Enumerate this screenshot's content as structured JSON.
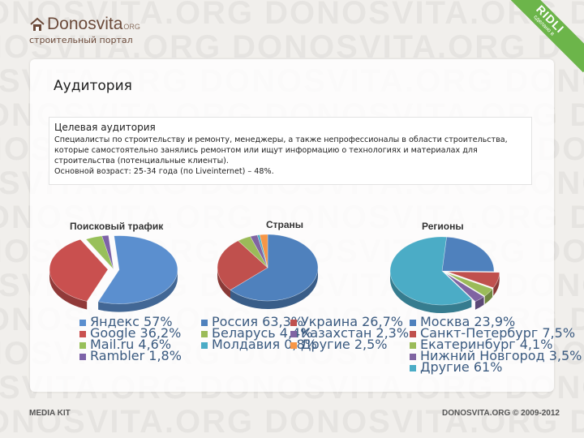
{
  "header": {
    "logo_name": "Donosvita",
    "logo_suffix": "ORG",
    "tagline": "строительный портал",
    "ribbon_brand": "RIDLI",
    "ribbon_sub": "сделано в"
  },
  "watermark_text": "DONOSVITA.ORG",
  "page_title": "Аудитория",
  "audience": {
    "heading": "Целевая аудитория",
    "text": "Специалисты по строительству и ремонту, менеджеры, а также непрофессионалы в области строительства, которые самостоятельно занялись ремонтом или ищут информацию о технологиях и материалах для строительства (потенциальные клиенты).",
    "age": "Основной возраст: 25-34 года (по Liveinternet) – 48%."
  },
  "chart_data": [
    {
      "type": "pie",
      "title": "Поисковый трафик",
      "labels": [
        "Яндекс 57%",
        "Google 36,2%",
        "Mail.ru 4,6%",
        "Rambler 1,8%"
      ],
      "values": [
        57,
        36.2,
        4.6,
        1.8
      ],
      "colors": [
        "#5b8fcf",
        "#c9504f",
        "#98c05a",
        "#7d62a8"
      ],
      "legend": "bottom"
    },
    {
      "type": "pie",
      "title": "Страны",
      "labels": [
        "Россия 63,3%",
        "Украина 26,7%",
        "Беларусь 4,4%",
        "Казахстан 2,3%",
        "Молдавия 0,8%",
        "Другие 2,5%"
      ],
      "values": [
        63.3,
        26.7,
        4.4,
        2.3,
        0.8,
        2.5
      ],
      "colors": [
        "#4f81bd",
        "#c0504d",
        "#9bbb59",
        "#8064a2",
        "#4bacc6",
        "#f79646"
      ],
      "legend": "bottom"
    },
    {
      "type": "pie",
      "title": "Регионы",
      "labels": [
        "Москва 23,9%",
        "Санкт-Петербург 7,5%",
        "Екатеринбург 4,1%",
        "Нижний Новгород 3,5%",
        "Другие 61%"
      ],
      "values": [
        23.9,
        7.5,
        4.1,
        3.5,
        61
      ],
      "colors": [
        "#4f81bd",
        "#c0504d",
        "#9bbb59",
        "#8064a2",
        "#4bacc6"
      ],
      "legend": "bottom"
    }
  ],
  "footer": {
    "left": "MEDIA KIT",
    "right": "DONOSVITA.ORG © 2009-2012"
  }
}
